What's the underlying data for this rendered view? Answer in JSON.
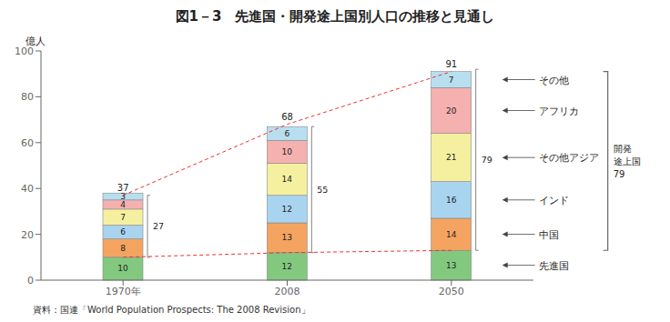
{
  "chart_data": {
    "type": "bar",
    "stacked": true,
    "title": "図1－3　先進国・開発途上国別人口の推移と見通し",
    "ylabel": "億人",
    "source": "資料：国連「World Population Prospects: The 2008 Revision」",
    "categories": [
      "1970年",
      "2008",
      "2050"
    ],
    "series": [
      {
        "name": "先進国",
        "color": "#82c97f",
        "values": [
          10,
          12,
          13
        ]
      },
      {
        "name": "中国",
        "color": "#f4a460",
        "values": [
          8,
          13,
          14
        ]
      },
      {
        "name": "インド",
        "color": "#a8d4f0",
        "values": [
          6,
          12,
          16
        ]
      },
      {
        "name": "その他アジア",
        "color": "#f5f0a0",
        "values": [
          7,
          14,
          21
        ]
      },
      {
        "name": "アフリカ",
        "color": "#f5b0b0",
        "values": [
          4,
          10,
          20
        ]
      },
      {
        "name": "その他",
        "color": "#b8dff0",
        "values": [
          3,
          6,
          7
        ]
      }
    ],
    "lines": [
      {
        "type": "line",
        "color": "#ee3333",
        "line_style": "dashed",
        "values": [
          10,
          12,
          13
        ]
      },
      {
        "type": "line",
        "color": "#ee3333",
        "line_style": "dashed",
        "data_labels": true,
        "values": [
          37,
          68,
          91
        ]
      }
    ],
    "developing_totals": [
      27,
      55,
      79
    ],
    "annotations": [
      "開発\n途上国\n79"
    ],
    "data_labels": true,
    "legend": "right",
    "ylim": [
      0,
      100
    ],
    "yticks": [
      0,
      20,
      40,
      60,
      80,
      100
    ]
  }
}
